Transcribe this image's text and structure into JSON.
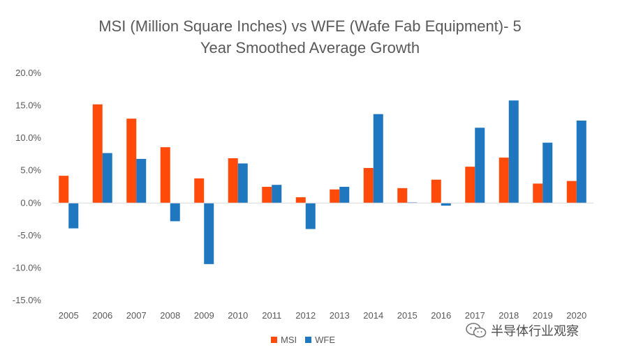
{
  "chart_data": {
    "type": "bar",
    "title_line1": "MSI (Million Square Inches) vs WFE (Wafe Fab Equipment)- 5",
    "title_line2": "Year Smoothed Average Growth",
    "categories": [
      "2005",
      "2006",
      "2007",
      "2008",
      "2009",
      "2010",
      "2011",
      "2012",
      "2013",
      "2014",
      "2015",
      "2016",
      "2017",
      "2018",
      "2019",
      "2020"
    ],
    "series": [
      {
        "name": "MSI",
        "color": "#FF4A0A",
        "values": [
          4.2,
          15.2,
          13.0,
          8.6,
          3.8,
          6.9,
          2.5,
          0.9,
          2.1,
          5.4,
          2.3,
          3.6,
          5.6,
          7.0,
          3.0,
          3.4
        ]
      },
      {
        "name": "WFE",
        "color": "#1F77C0",
        "values": [
          -3.9,
          7.7,
          6.8,
          -2.8,
          -9.4,
          6.1,
          2.8,
          -4.0,
          2.5,
          13.7,
          0.1,
          -0.4,
          11.6,
          15.8,
          9.3,
          12.7
        ]
      }
    ],
    "ylim": [
      -15,
      20
    ],
    "y_ticks": [
      "20.0%",
      "15.0%",
      "10.0%",
      "5.0%",
      "0.0%",
      "-5.0%",
      "-10.0%",
      "-15.0%"
    ],
    "y_tick_values": [
      20,
      15,
      10,
      5,
      0,
      -5,
      -10,
      -15
    ],
    "grid": false,
    "legend_position": "bottom"
  },
  "watermark": {
    "text": "半导体行业观察",
    "icon": "wechat-icon"
  }
}
